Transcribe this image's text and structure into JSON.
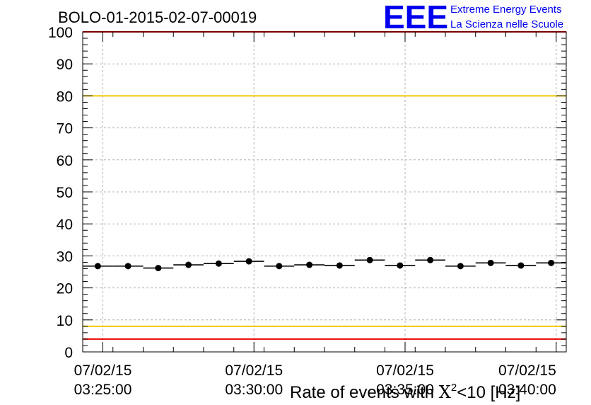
{
  "chart_data": {
    "type": "scatter",
    "title": "BOLO-01-2015-02-07-00019",
    "ylabel": "",
    "xlabel_prefix": "Rate of events with ",
    "xlabel_chi": "X",
    "xlabel_sup": "2",
    "xlabel_suffix": "<10 [Hz]",
    "ylim": [
      0,
      100
    ],
    "y_ticks": [
      "0",
      "10",
      "20",
      "30",
      "40",
      "50",
      "60",
      "70",
      "80",
      "90",
      "100"
    ],
    "x_ticks": [
      {
        "date": "07/02/15",
        "time": "03:25:00"
      },
      {
        "date": "07/02/15",
        "time": "03:30:00"
      },
      {
        "date": "07/02/15",
        "time": "03:35:00"
      },
      {
        "date": "07/02/15",
        "time": "03:40:00"
      }
    ],
    "grid": true,
    "reference_lines": [
      {
        "value": 100,
        "color": "#ee0000"
      },
      {
        "value": 80,
        "color": "#f2c800"
      },
      {
        "value": 8,
        "color": "#f2c800"
      },
      {
        "value": 4,
        "color": "#ee0000"
      }
    ],
    "points": [
      {
        "x": "03:24:50",
        "y": 26.8
      },
      {
        "x": "03:25:50",
        "y": 26.8
      },
      {
        "x": "03:26:50",
        "y": 26.2
      },
      {
        "x": "03:27:50",
        "y": 27.2
      },
      {
        "x": "03:28:50",
        "y": 27.6
      },
      {
        "x": "03:29:50",
        "y": 28.3
      },
      {
        "x": "03:30:50",
        "y": 26.8
      },
      {
        "x": "03:31:50",
        "y": 27.2
      },
      {
        "x": "03:32:50",
        "y": 27.0
      },
      {
        "x": "03:33:50",
        "y": 28.7
      },
      {
        "x": "03:34:50",
        "y": 27.0
      },
      {
        "x": "03:35:50",
        "y": 28.7
      },
      {
        "x": "03:36:50",
        "y": 26.8
      },
      {
        "x": "03:37:50",
        "y": 27.8
      },
      {
        "x": "03:38:50",
        "y": 27.0
      },
      {
        "x": "03:39:50",
        "y": 27.8
      }
    ],
    "colors": {
      "points": "#000000",
      "grid": "#b0b0b0",
      "logo": "#0000ee"
    }
  },
  "logo": {
    "text": "EEE",
    "line1": "Extreme Energy Events",
    "line2": "La Scienza nelle Scuole"
  }
}
